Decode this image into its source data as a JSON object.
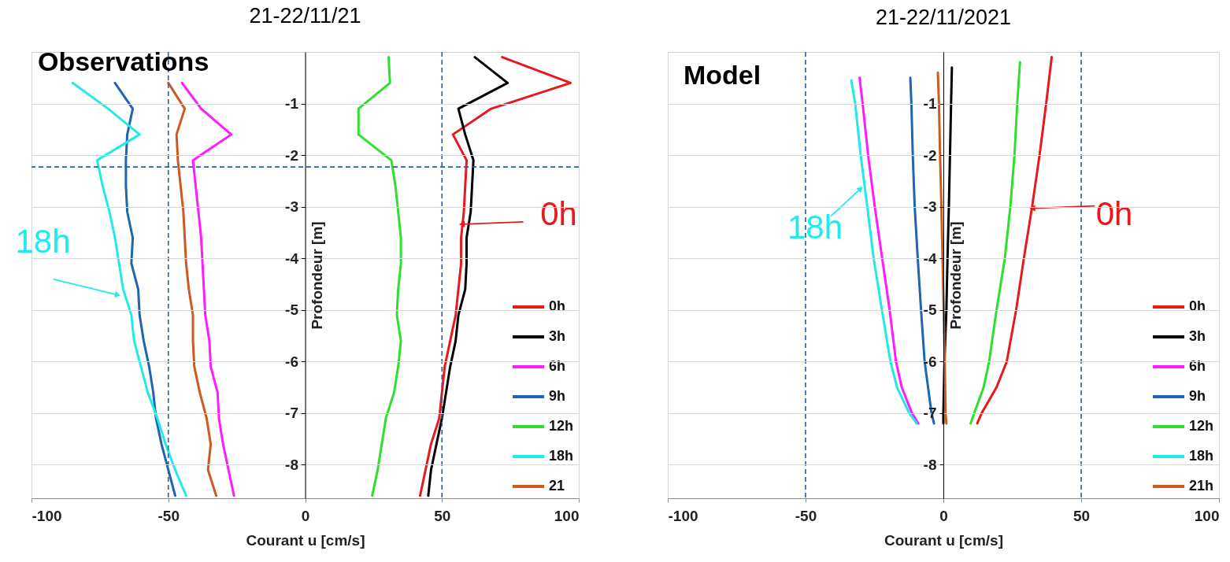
{
  "chart_data": [
    {
      "type": "line",
      "title": "21-22/11/21",
      "xlabel": "Courant u [cm/s]",
      "ylabel": "Profondeur [m]",
      "xlim": [
        -100,
        100
      ],
      "xticks": [
        -100,
        -50,
        0,
        50,
        100
      ],
      "ylim": [
        -8.65,
        0
      ],
      "yticks": [
        -1,
        -2,
        -3,
        -4,
        -5,
        -6,
        -7,
        -8
      ],
      "grid": true,
      "legend": "bottom right",
      "series": [
        {
          "name": "0h",
          "color": "#e6191c",
          "x": [
            72,
            97,
            68,
            54,
            59,
            58.5,
            58,
            57,
            57,
            56,
            55,
            53,
            51,
            50,
            49,
            46,
            44,
            42
          ],
          "values": [
            -0.1,
            -0.6,
            -1.1,
            -1.6,
            -2.1,
            -2.6,
            -3.1,
            -3.6,
            -4.1,
            -4.6,
            -5.1,
            -5.6,
            -6.1,
            -6.6,
            -7.1,
            -7.6,
            -8.1,
            -8.6
          ]
        },
        {
          "name": "3h",
          "color": "#000000",
          "x": [
            62,
            74,
            56,
            58.5,
            61.5,
            61,
            60.5,
            59,
            59,
            58.5,
            56,
            55,
            53,
            51.5,
            50,
            48,
            46,
            45
          ],
          "values": [
            -0.1,
            -0.6,
            -1.1,
            -1.6,
            -2.1,
            -2.6,
            -3.1,
            -3.6,
            -4.1,
            -4.6,
            -5.1,
            -5.6,
            -6.1,
            -6.6,
            -7.1,
            -7.6,
            -8.1,
            -8.6
          ]
        },
        {
          "name": "6h",
          "color": "#ff1aff",
          "x": [
            -45,
            -38,
            -27,
            -41,
            -40,
            -39,
            -38,
            -37.5,
            -37,
            -36.5,
            -35,
            -34.5,
            -32,
            -31.5,
            -30,
            -28,
            -26
          ],
          "values": [
            -0.6,
            -1.1,
            -1.6,
            -2.1,
            -2.6,
            -3.1,
            -3.6,
            -4.1,
            -4.6,
            -5.1,
            -5.6,
            -6.1,
            -6.6,
            -7.1,
            -7.6,
            -8.1,
            -8.6
          ]
        },
        {
          "name": "9h",
          "color": "#1f66b0",
          "x": [
            -69.5,
            -63,
            -65,
            -65.5,
            -65.5,
            -65,
            -63,
            -63.5,
            -61,
            -60.5,
            -59,
            -57,
            -55.5,
            -54.5,
            -52.5,
            -50,
            -47.5
          ],
          "values": [
            -0.6,
            -1.1,
            -1.6,
            -2.1,
            -2.6,
            -3.1,
            -3.6,
            -4.1,
            -4.6,
            -5.1,
            -5.6,
            -6.1,
            -6.6,
            -7.1,
            -7.6,
            -8.1,
            -8.6
          ]
        },
        {
          "name": "12h",
          "color": "#2ee02e",
          "x": [
            30.5,
            31,
            19.5,
            19.5,
            31.5,
            33,
            34,
            35,
            35,
            34,
            33.5,
            35,
            34,
            32.5,
            29.5,
            28,
            26.5,
            24.5
          ],
          "values": [
            -0.1,
            -0.6,
            -1.1,
            -1.6,
            -2.1,
            -2.6,
            -3.1,
            -3.6,
            -4.1,
            -4.6,
            -5.1,
            -5.6,
            -6.1,
            -6.6,
            -7.1,
            -7.6,
            -8.1,
            -8.6
          ]
        },
        {
          "name": "18h",
          "color": "#22eaea",
          "x": [
            -85,
            -72,
            -60.5,
            -76,
            -74,
            -71.5,
            -69.5,
            -68,
            -66.5,
            -63.5,
            -62.5,
            -60,
            -57.5,
            -54,
            -51,
            -47.5,
            -43.5
          ],
          "values": [
            -0.6,
            -1.1,
            -1.6,
            -2.1,
            -2.6,
            -3.1,
            -3.6,
            -4.1,
            -4.6,
            -5.1,
            -5.6,
            -6.1,
            -6.6,
            -7.1,
            -7.6,
            -8.1,
            -8.6
          ]
        },
        {
          "name": "21",
          "color": "#cc5a22",
          "x": [
            -50,
            -44,
            -47,
            -46.5,
            -45.5,
            -44.5,
            -44,
            -43.5,
            -42.5,
            -41,
            -41,
            -40.5,
            -38.5,
            -36,
            -34.5,
            -35.5,
            -32.5
          ],
          "values": [
            -0.6,
            -1.1,
            -1.6,
            -2.1,
            -2.6,
            -3.1,
            -3.6,
            -4.1,
            -4.6,
            -5.1,
            -5.6,
            -6.1,
            -6.6,
            -7.1,
            -7.6,
            -8.1,
            -8.6
          ]
        }
      ],
      "ref_lines": [
        {
          "axis": "x",
          "value": -50,
          "color": "#2a5ca8",
          "line_style": "dashed"
        },
        {
          "axis": "x",
          "value": 50,
          "color": "#2a5ca8",
          "line_style": "dashed"
        },
        {
          "axis": "y",
          "value": -2.23,
          "color": "#2a5ca8",
          "line_style": "dashed"
        }
      ],
      "annotations": [
        "Observations",
        {
          "text": "18h",
          "x": -68.5,
          "y": -4.71
        },
        {
          "text": "0h",
          "x": 57.3,
          "y": -3.34
        }
      ]
    },
    {
      "type": "line",
      "title": "21-22/11/2021",
      "xlabel": "Courant u [cm/s]",
      "ylabel": "Profondeur [m]",
      "xlim": [
        -100,
        100
      ],
      "xticks": [
        -100,
        -50,
        0,
        50,
        100
      ],
      "ylim": [
        -8.65,
        0
      ],
      "yticks": [
        -1,
        -2,
        -3,
        -4,
        -5,
        -6,
        -7,
        -8
      ],
      "grid": true,
      "legend": "bottom right",
      "series": [
        {
          "name": "0h",
          "color": "#e6191c",
          "x": [
            39.3,
            37.3,
            34.9,
            32.2,
            29.2,
            26.4,
            23,
            19.3,
            13.9,
            12.3
          ],
          "values": [
            -0.1,
            -1,
            -2,
            -3,
            -4,
            -5,
            -6,
            -6.5,
            -7,
            -7.2
          ]
        },
        {
          "name": "3h",
          "color": "#000000",
          "x": [
            3.1,
            2.8,
            2.4,
            2,
            1.5,
            1.1,
            0.4,
            0,
            0
          ],
          "values": [
            -0.3,
            -1,
            -2,
            -3,
            -4,
            -5,
            -6,
            -7,
            -7.2
          ]
        },
        {
          "name": "6h",
          "color": "#ff1aff",
          "x": [
            -30.4,
            -29.3,
            -27.3,
            -24.9,
            -22.2,
            -19.5,
            -17.2,
            -15.1,
            -11.4,
            -9.1
          ],
          "values": [
            -0.5,
            -1,
            -2,
            -3,
            -4,
            -5,
            -6,
            -6.5,
            -7,
            -7.2
          ]
        },
        {
          "name": "9h",
          "color": "#1f66b0",
          "x": [
            -12,
            -11.6,
            -11.1,
            -10.4,
            -9.3,
            -8.1,
            -6.8,
            -4.3,
            -3.4
          ],
          "values": [
            -0.5,
            -1,
            -2,
            -3,
            -4,
            -5,
            -6,
            -7,
            -7.2
          ]
        },
        {
          "name": "12h",
          "color": "#2ee02e",
          "x": [
            27.8,
            26.8,
            25.8,
            24.3,
            22.3,
            19.3,
            16.6,
            14.6,
            11.2,
            9.9
          ],
          "values": [
            -0.2,
            -1,
            -2,
            -3,
            -4,
            -5,
            -6,
            -6.5,
            -7,
            -7.2
          ]
        },
        {
          "name": "18h",
          "color": "#22eaea",
          "x": [
            -33.4,
            -32,
            -30,
            -27.6,
            -25.3,
            -22.3,
            -19.2,
            -16.8,
            -12.4,
            -9.7
          ],
          "values": [
            -0.55,
            -1,
            -2,
            -3,
            -4,
            -5,
            -6,
            -6.5,
            -7,
            -7.2
          ]
        },
        {
          "name": "21h",
          "color": "#cc5a22",
          "x": [
            -2,
            -1.6,
            -1.2,
            -0.7,
            -0.3,
            0.1,
            0.5,
            0.8,
            1.1
          ],
          "values": [
            -0.4,
            -1,
            -2,
            -3,
            -4,
            -5,
            -6,
            -7,
            -7.2
          ]
        }
      ],
      "ref_lines": [
        {
          "axis": "x",
          "value": -50,
          "color": "#2a5ca8",
          "line_style": "dashed"
        },
        {
          "axis": "x",
          "value": 50,
          "color": "#2a5ca8",
          "line_style": "dashed"
        }
      ],
      "annotations": [
        "Model",
        {
          "text": "18h",
          "x": -30,
          "y": -2.65
        },
        {
          "text": "0h",
          "x": 32.3,
          "y": -3.03
        }
      ]
    }
  ]
}
